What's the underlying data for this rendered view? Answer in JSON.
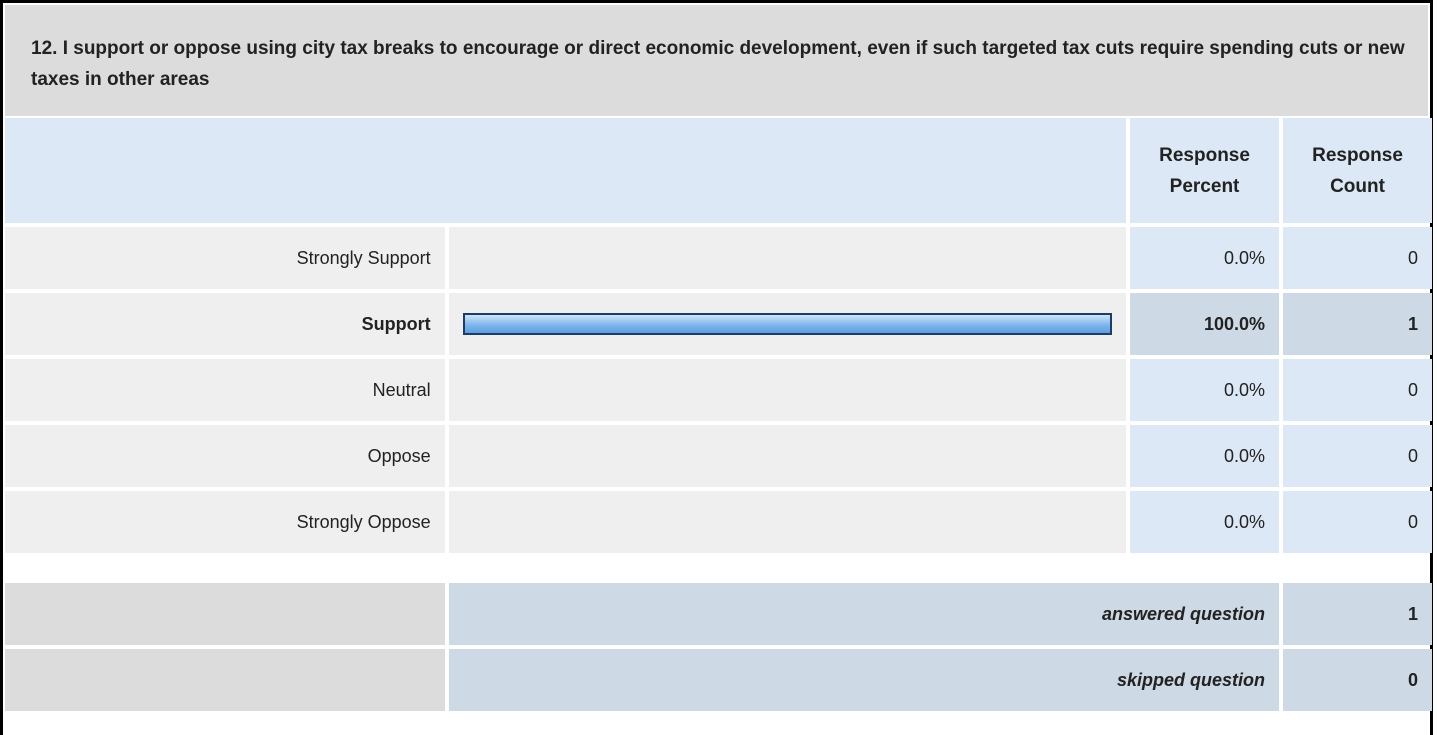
{
  "question": {
    "title": "12. I support or oppose using city tax breaks to encourage or direct economic development, even if such targeted tax cuts require spending cuts or new taxes in other areas"
  },
  "table": {
    "header": [
      "Response Percent",
      "Response Count"
    ],
    "rows": [
      {
        "label": "Strongly Support",
        "percent": 0,
        "percent_label": "0.0%",
        "count": 0
      },
      {
        "label": "Support",
        "percent": 100,
        "percent_label": "100.0%",
        "count": 1
      },
      {
        "label": "Neutral",
        "percent": 0,
        "percent_label": "0.0%",
        "count": 0
      },
      {
        "label": "Oppose",
        "percent": 0,
        "percent_label": "0.0%",
        "count": 0
      },
      {
        "label": "Strongly Oppose",
        "percent": 0,
        "percent_label": "0.0%",
        "count": 0
      }
    ],
    "summary": [
      {
        "label": "answered question",
        "count": 1
      },
      {
        "label": "skipped question",
        "count": 0
      }
    ]
  }
}
